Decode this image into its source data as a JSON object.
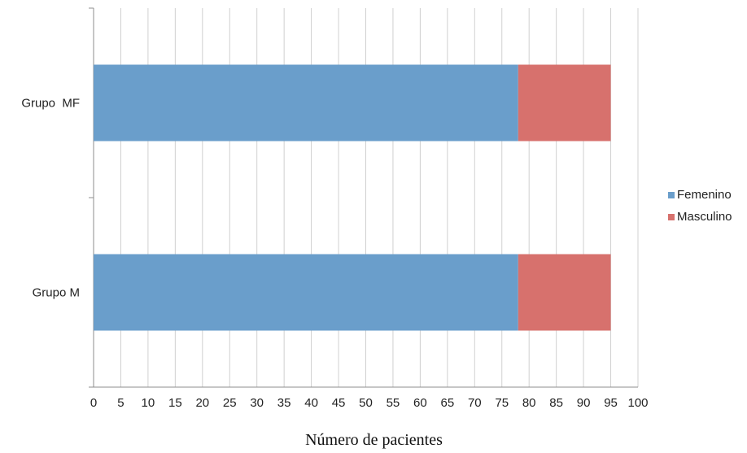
{
  "chart_data": {
    "type": "bar",
    "orientation": "horizontal",
    "stacked": true,
    "categories": [
      "Grupo  MF",
      "Grupo M"
    ],
    "series": [
      {
        "name": "Femenino",
        "color": "#6a9ecb",
        "values": [
          78,
          78
        ]
      },
      {
        "name": "Masculino",
        "color": "#d7716d",
        "values": [
          17,
          17
        ]
      }
    ],
    "xlabel": "Número de pacientes",
    "ylabel": "",
    "xlim": [
      0,
      100
    ],
    "xticks": [
      0,
      5,
      10,
      15,
      20,
      25,
      30,
      35,
      40,
      45,
      50,
      55,
      60,
      65,
      70,
      75,
      80,
      85,
      90,
      95,
      100
    ],
    "grid": true,
    "legend_position": "right"
  }
}
